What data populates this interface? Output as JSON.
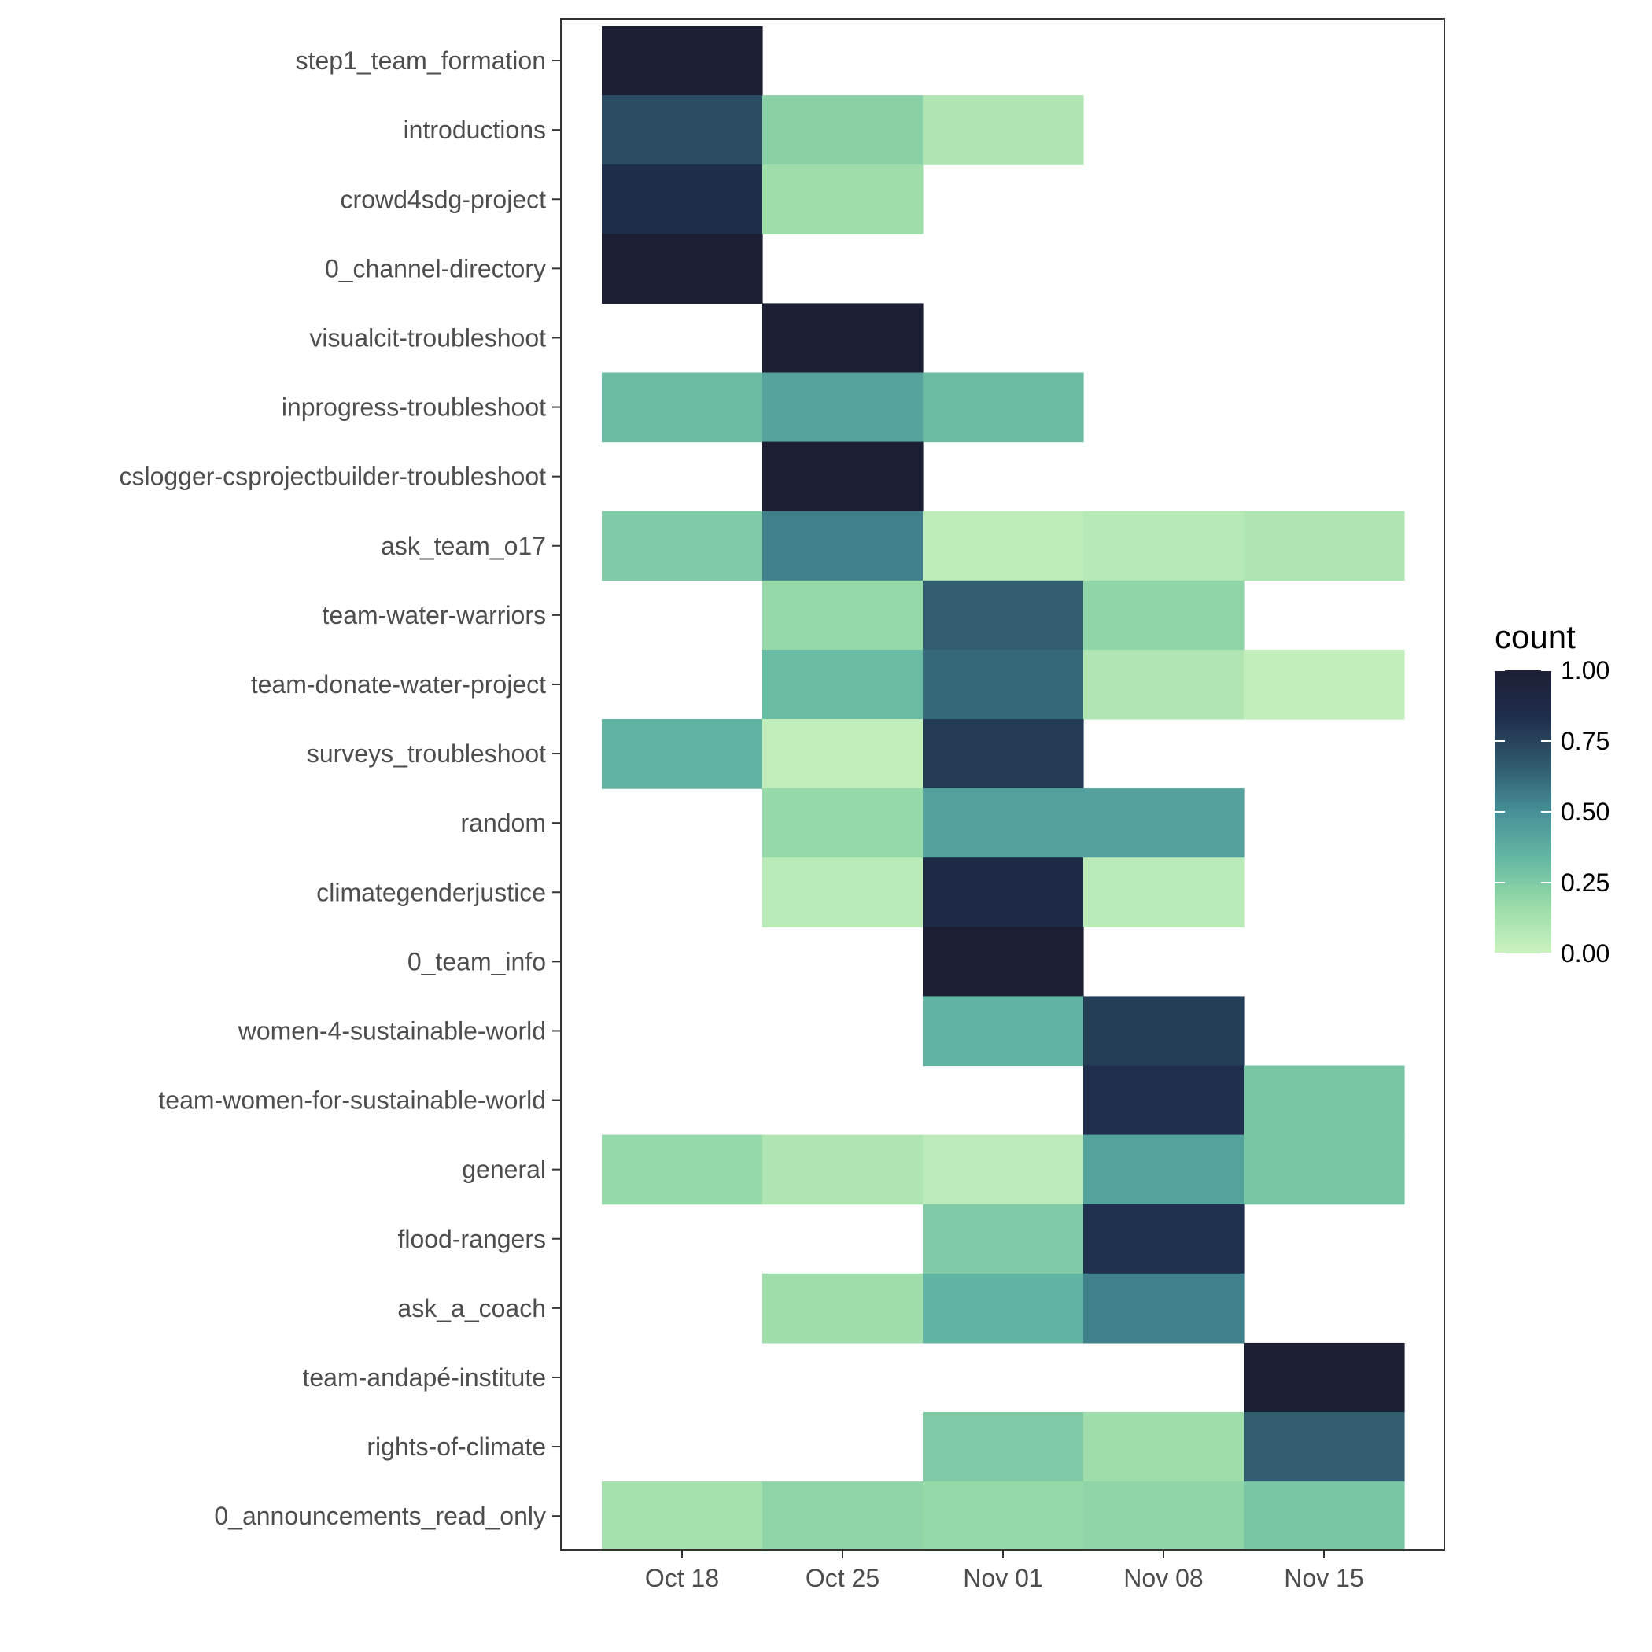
{
  "chart_data": {
    "type": "heatmap",
    "title": "",
    "xlabel": "",
    "ylabel": "",
    "x": [
      "Oct 18",
      "Oct 25",
      "Nov 01",
      "Nov 08",
      "Nov 15"
    ],
    "y": [
      "step1_team_formation",
      "introductions",
      "crowd4sdg-project",
      "0_channel-directory",
      "visualcit-troubleshoot",
      "inprogress-troubleshoot",
      "cslogger-csprojectbuilder-troubleshoot",
      "ask_team_o17",
      "team-water-warriors",
      "team-donate-water-project",
      "surveys_troubleshoot",
      "random",
      "climategenderjustice",
      "0_team_info",
      "women-4-sustainable-world",
      "team-women-for-sustainable-world",
      "general",
      "flood-rangers",
      "ask_a_coach",
      "team-andapé-institute",
      "rights-of-climate",
      "0_announcements_read_only"
    ],
    "values": [
      [
        1.0,
        null,
        null,
        null,
        null
      ],
      [
        0.72,
        0.22,
        0.1,
        null,
        null
      ],
      [
        0.85,
        0.15,
        null,
        null,
        null
      ],
      [
        1.0,
        null,
        null,
        null,
        null
      ],
      [
        null,
        1.0,
        null,
        null,
        null
      ],
      [
        0.32,
        0.42,
        0.32,
        null,
        null
      ],
      [
        null,
        1.0,
        null,
        null,
        null
      ],
      [
        0.25,
        0.55,
        0.04,
        0.07,
        0.1
      ],
      [
        null,
        0.18,
        0.65,
        0.2,
        null
      ],
      [
        null,
        0.32,
        0.62,
        0.09,
        0.03
      ],
      [
        0.35,
        0.03,
        0.78,
        null,
        null
      ],
      [
        null,
        0.18,
        0.43,
        0.43,
        null
      ],
      [
        null,
        0.06,
        0.88,
        0.06,
        null
      ],
      [
        null,
        null,
        1.0,
        null,
        null
      ],
      [
        null,
        null,
        0.35,
        0.77,
        null
      ],
      [
        null,
        null,
        null,
        0.83,
        0.27
      ],
      [
        0.18,
        0.1,
        0.05,
        0.42,
        0.27
      ],
      [
        null,
        null,
        0.25,
        0.82,
        null
      ],
      [
        null,
        0.15,
        0.35,
        0.55,
        null
      ],
      [
        null,
        null,
        null,
        null,
        1.0
      ],
      [
        null,
        null,
        0.25,
        0.15,
        0.65
      ],
      [
        0.13,
        0.2,
        0.18,
        0.2,
        0.27
      ]
    ],
    "color_range": [
      0,
      1
    ],
    "colorscale": [
      "#cbf2c0",
      "#9adca8",
      "#65b8a3",
      "#479098",
      "#305a6c",
      "#1f2d4c",
      "#1d1f35"
    ],
    "legend": {
      "title": "count",
      "ticks": [
        "1.00",
        "0.75",
        "0.50",
        "0.25",
        "0.00"
      ],
      "position": "right"
    },
    "grid": false
  }
}
